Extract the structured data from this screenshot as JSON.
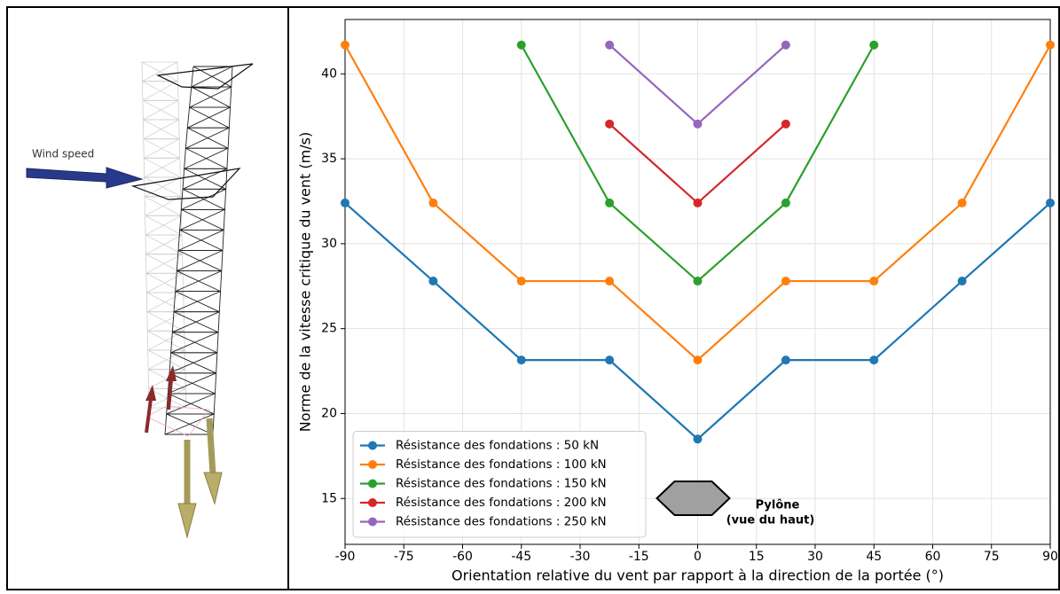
{
  "illustration": {
    "label": "Wind speed"
  },
  "chart_data": {
    "type": "line",
    "x_label": "Orientation relative du vent par rapport à la direction de la portée (°)",
    "y_label": "Norme de la vitesse critique du vent (m/s)",
    "x": [
      -90,
      -67.5,
      -45,
      -22.5,
      0,
      22.5,
      45,
      67.5,
      90
    ],
    "series": [
      {
        "name": "Résistance des fondations : 50 kN",
        "color": "#1f77b4",
        "values": [
          32.4,
          27.8,
          23.15,
          23.15,
          18.5,
          23.15,
          23.15,
          27.8,
          32.4
        ]
      },
      {
        "name": "Résistance des fondations : 100 kN",
        "color": "#ff7f0e",
        "values": [
          41.7,
          32.4,
          27.8,
          27.8,
          23.15,
          27.8,
          27.8,
          32.4,
          41.7
        ]
      },
      {
        "name": "Résistance des fondations : 150 kN",
        "color": "#2ca02c",
        "values": [
          null,
          null,
          41.7,
          32.4,
          27.8,
          32.4,
          41.7,
          null,
          null
        ]
      },
      {
        "name": "Résistance des fondations : 200 kN",
        "color": "#d62728",
        "values": [
          null,
          null,
          null,
          37.05,
          32.4,
          37.05,
          null,
          null,
          null
        ]
      },
      {
        "name": "Résistance des fondations : 250 kN",
        "color": "#9467bd",
        "values": [
          null,
          null,
          null,
          41.7,
          37.05,
          41.7,
          null,
          null,
          null
        ]
      }
    ],
    "xlim": [
      -90,
      90
    ],
    "xticks": [
      -90,
      -75,
      -60,
      -45,
      -30,
      -15,
      0,
      15,
      30,
      45,
      60,
      75,
      90
    ],
    "ylim": [
      12.3,
      43.2
    ],
    "yticks": [
      15,
      20,
      25,
      30,
      35,
      40
    ],
    "grid": true,
    "legend": "lower left",
    "annotation": [
      "Pylône",
      "(vue du haut)"
    ]
  }
}
